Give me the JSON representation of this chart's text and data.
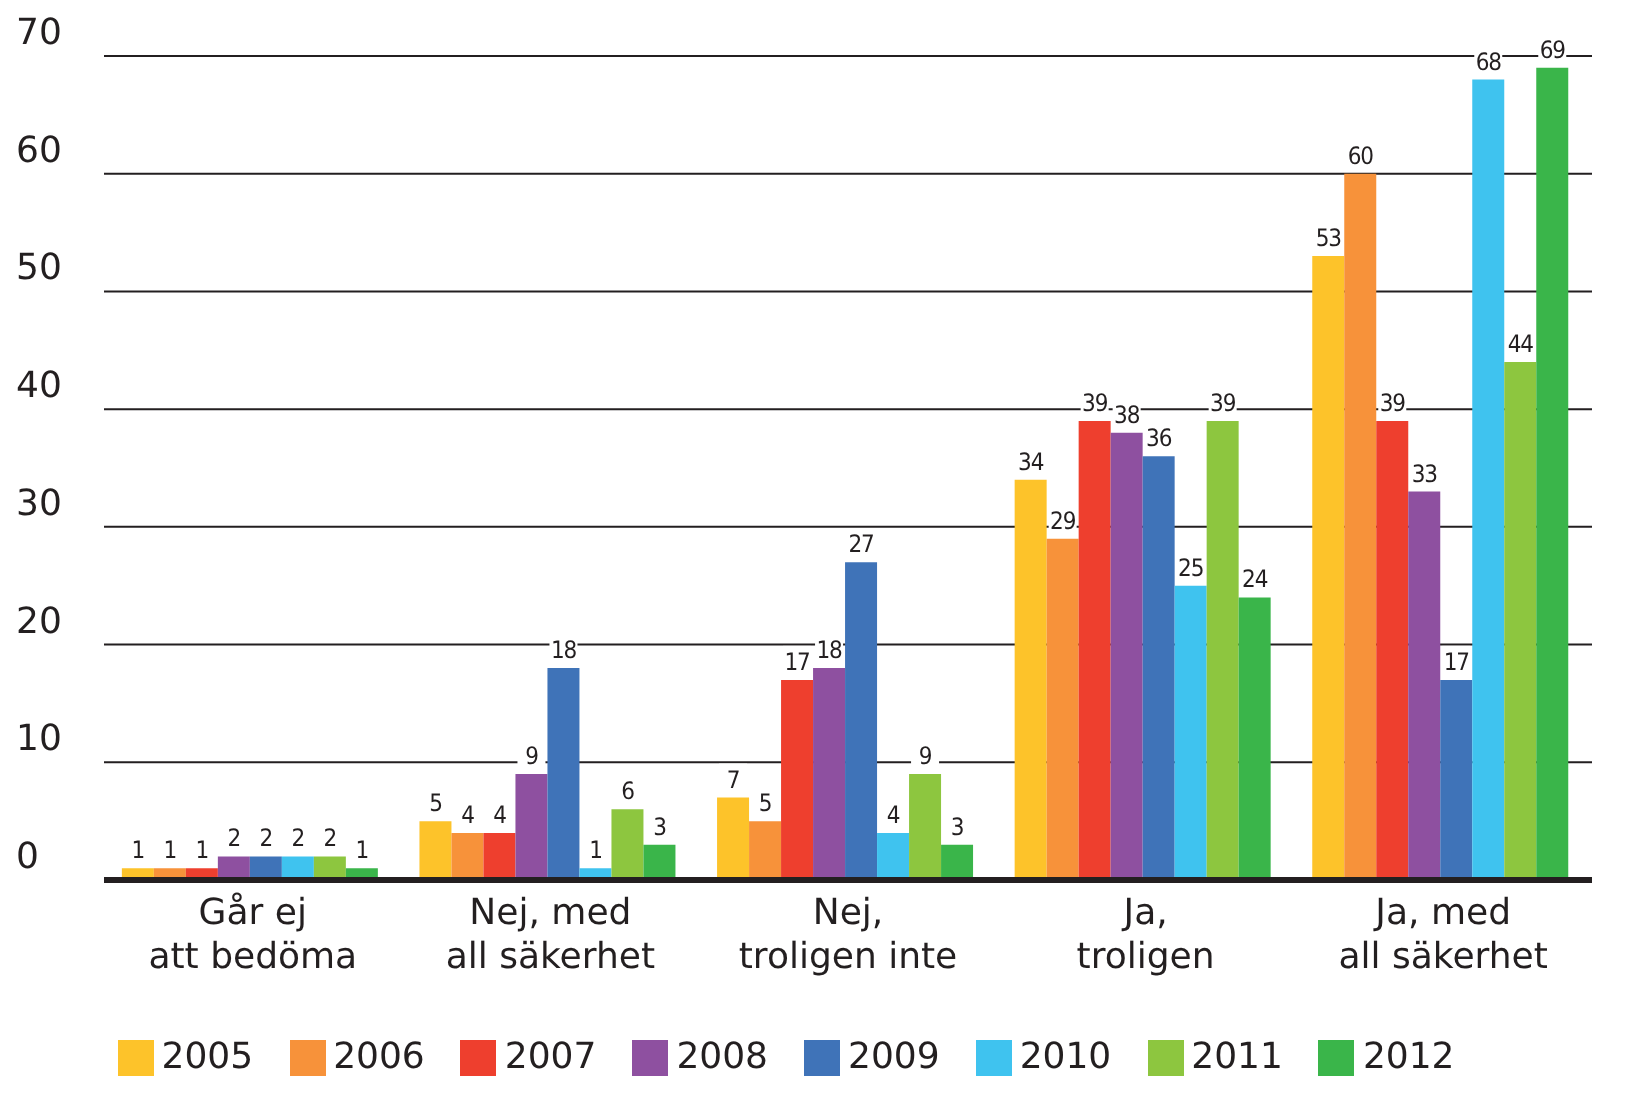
{
  "chart_data": {
    "type": "bar",
    "categories": [
      "Går ej\natt bedöma",
      "Nej, med\nall säkerhet",
      "Nej,\ntroligen inte",
      "Ja,\ntroligen",
      "Ja, med\nall säkerhet"
    ],
    "series": [
      {
        "name": "2005",
        "color": "#fdc32a",
        "values": [
          1,
          5,
          7,
          34,
          53
        ]
      },
      {
        "name": "2006",
        "color": "#f7923a",
        "values": [
          1,
          4,
          5,
          29,
          60
        ]
      },
      {
        "name": "2007",
        "color": "#ee3f2e",
        "values": [
          1,
          4,
          17,
          39,
          39
        ]
      },
      {
        "name": "2008",
        "color": "#8e50a0",
        "values": [
          2,
          9,
          18,
          38,
          33
        ]
      },
      {
        "name": "2009",
        "color": "#3f73b8",
        "values": [
          2,
          18,
          27,
          36,
          17
        ]
      },
      {
        "name": "2010",
        "color": "#3fc3ef",
        "values": [
          2,
          1,
          4,
          25,
          68
        ]
      },
      {
        "name": "2011",
        "color": "#8dc63f",
        "values": [
          2,
          6,
          9,
          39,
          44
        ]
      },
      {
        "name": "2012",
        "color": "#3ab54a",
        "values": [
          1,
          3,
          3,
          24,
          69
        ]
      }
    ],
    "ylim": [
      0,
      70
    ],
    "yticks": [
      0,
      10,
      20,
      30,
      40,
      50,
      60,
      70
    ],
    "grid": "y",
    "data_labels": true,
    "legend": "bottom"
  }
}
